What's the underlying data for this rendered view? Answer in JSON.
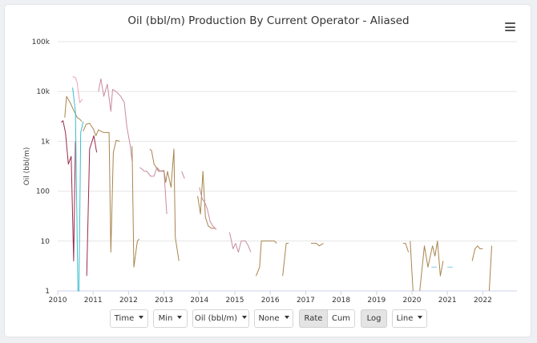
{
  "chart_data": {
    "type": "line",
    "title": "Oil (bbl/m) Production By Current Operator - Aliased",
    "ylabel": "Oil (bbl/m)",
    "y_scale": "log",
    "ylim": [
      1,
      100000
    ],
    "xlim": [
      2010,
      2023
    ],
    "y_ticks": [
      "1",
      "10",
      "100",
      "1k",
      "10k",
      "100k"
    ],
    "x_ticks": [
      "2010",
      "2011",
      "2012",
      "2013",
      "2014",
      "2015",
      "2016",
      "2017",
      "2018",
      "2019",
      "2020",
      "2021",
      "2022"
    ],
    "grid": "horizontal",
    "series": [
      {
        "color": "#a8854c",
        "segments": [
          [
            [
              2010.2,
              3000
            ],
            [
              2010.25,
              8000
            ],
            [
              2010.35,
              6000
            ],
            [
              2010.45,
              4200
            ],
            [
              2010.55,
              3000
            ],
            [
              2010.62,
              2800
            ],
            [
              2010.68,
              2500
            ]
          ],
          [
            [
              2010.72,
              1600
            ],
            [
              2010.8,
              2200
            ],
            [
              2010.9,
              2300
            ],
            [
              2011.0,
              1800
            ],
            [
              2011.08,
              1300
            ],
            [
              2011.15,
              1700
            ],
            [
              2011.22,
              1600
            ],
            [
              2011.3,
              1500
            ],
            [
              2011.45,
              1500
            ],
            [
              2011.5,
              6
            ],
            [
              2011.57,
              600
            ],
            [
              2011.65,
              1050
            ],
            [
              2011.75,
              1000
            ]
          ],
          [
            [
              2012.1,
              800
            ],
            [
              2012.15,
              3
            ],
            [
              2012.25,
              10
            ],
            [
              2012.3,
              11
            ]
          ],
          [
            [
              2012.6,
              700
            ],
            [
              2012.65,
              650
            ],
            [
              2012.72,
              350
            ],
            [
              2012.78,
              300
            ],
            [
              2012.85,
              250
            ],
            [
              2013.0,
              260
            ],
            [
              2013.05,
              150
            ],
            [
              2013.1,
              250
            ],
            [
              2013.2,
              120
            ],
            [
              2013.28,
              700
            ],
            [
              2013.32,
              12
            ],
            [
              2013.42,
              4
            ]
          ],
          [
            [
              2013.95,
              80
            ],
            [
              2014.03,
              35
            ],
            [
              2014.1,
              250
            ],
            [
              2014.17,
              30
            ],
            [
              2014.25,
              20
            ],
            [
              2014.35,
              18
            ],
            [
              2014.45,
              18
            ]
          ],
          [
            [
              2015.6,
              2
            ],
            [
              2015.7,
              3
            ],
            [
              2015.75,
              10
            ],
            [
              2015.9,
              10
            ],
            [
              2016.0,
              10
            ],
            [
              2016.12,
              10
            ],
            [
              2016.18,
              9
            ]
          ],
          [
            [
              2016.35,
              2
            ],
            [
              2016.45,
              9
            ],
            [
              2016.52,
              9
            ]
          ],
          [
            [
              2017.15,
              9
            ],
            [
              2017.3,
              9
            ],
            [
              2017.38,
              8
            ],
            [
              2017.5,
              9
            ]
          ],
          [
            [
              2019.75,
              9
            ],
            [
              2019.82,
              9
            ],
            [
              2019.9,
              6
            ]
          ],
          [
            [
              2019.95,
              10
            ],
            [
              2020.03,
              1
            ]
          ],
          [
            [
              2020.22,
              1
            ],
            [
              2020.35,
              8
            ],
            [
              2020.45,
              3
            ],
            [
              2020.58,
              8
            ],
            [
              2020.65,
              5
            ],
            [
              2020.72,
              10
            ],
            [
              2020.8,
              2
            ],
            [
              2020.88,
              4
            ]
          ],
          [
            [
              2021.7,
              4
            ],
            [
              2021.78,
              7
            ],
            [
              2021.85,
              8
            ],
            [
              2021.92,
              7
            ],
            [
              2022.0,
              7
            ]
          ],
          [
            [
              2022.18,
              1
            ],
            [
              2022.25,
              8
            ]
          ]
        ]
      },
      {
        "color": "#9a2a4a",
        "segments": [
          [
            [
              2010.1,
              2400
            ],
            [
              2010.15,
              2600
            ],
            [
              2010.22,
              1500
            ],
            [
              2010.3,
              350
            ],
            [
              2010.38,
              500
            ],
            [
              2010.45,
              4
            ],
            [
              2010.5,
              1000
            ]
          ],
          [
            [
              2010.82,
              2
            ],
            [
              2010.9,
              700
            ],
            [
              2011.02,
              1300
            ],
            [
              2011.1,
              600
            ]
          ]
        ]
      },
      {
        "color": "#c98aa3",
        "segments": [
          [
            [
              2011.15,
              10000
            ],
            [
              2011.22,
              18000
            ],
            [
              2011.3,
              8000
            ],
            [
              2011.4,
              14000
            ],
            [
              2011.5,
              4000
            ],
            [
              2011.55,
              11000
            ],
            [
              2011.65,
              10000
            ],
            [
              2011.78,
              8000
            ],
            [
              2011.88,
              6000
            ],
            [
              2011.95,
              2000
            ],
            [
              2012.05,
              800
            ],
            [
              2012.1,
              400
            ]
          ],
          [
            [
              2012.32,
              300
            ],
            [
              2012.45,
              250
            ],
            [
              2012.52,
              250
            ],
            [
              2012.62,
              200
            ],
            [
              2012.72,
              200
            ],
            [
              2012.8,
              300
            ],
            [
              2012.9,
              250
            ],
            [
              2013.0,
              250
            ],
            [
              2013.08,
              35
            ]
          ],
          [
            [
              2013.5,
              250
            ],
            [
              2013.58,
              180
            ]
          ],
          [
            [
              2014.0,
              120
            ],
            [
              2014.08,
              70
            ],
            [
              2014.15,
              60
            ],
            [
              2014.22,
              45
            ],
            [
              2014.3,
              25
            ],
            [
              2014.38,
              20
            ],
            [
              2014.48,
              17
            ]
          ],
          [
            [
              2014.85,
              15
            ],
            [
              2014.95,
              7
            ],
            [
              2015.02,
              9
            ],
            [
              2015.1,
              6
            ],
            [
              2015.18,
              10
            ],
            [
              2015.3,
              10
            ],
            [
              2015.38,
              8
            ],
            [
              2015.45,
              6
            ]
          ]
        ]
      },
      {
        "color": "#f0a0c0",
        "segments": [
          [
            [
              2010.42,
              20000
            ],
            [
              2010.5,
              19000
            ],
            [
              2010.55,
              15000
            ],
            [
              2010.62,
              6000
            ],
            [
              2010.7,
              7000
            ]
          ]
        ]
      },
      {
        "color": "#3bbcd0",
        "segments": [
          [
            [
              2010.42,
              12000
            ],
            [
              2010.5,
              4000
            ],
            [
              2010.57,
              1
            ],
            [
              2010.6,
              1
            ],
            [
              2010.65,
              1500
            ],
            [
              2010.72,
              2500
            ]
          ]
        ]
      },
      {
        "color": "#7fc8e6",
        "segments": [
          [
            [
              2020.55,
              3
            ],
            [
              2020.7,
              3
            ]
          ],
          [
            [
              2021.0,
              3
            ],
            [
              2021.15,
              3
            ]
          ]
        ]
      }
    ]
  },
  "menu": {
    "icon": "hamburger-menu-icon"
  },
  "controls": {
    "time_label": "Time",
    "min_label": "Min",
    "oil_label": "Oil (bbl/m)",
    "none_label": "None",
    "rate_label": "Rate",
    "cum_label": "Cum",
    "log_label": "Log",
    "line_label": "Line"
  }
}
